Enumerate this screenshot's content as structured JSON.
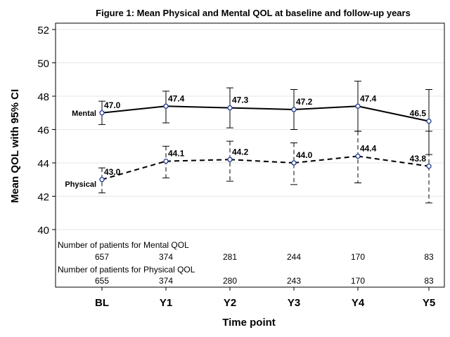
{
  "title": "Figure 1: Mean Physical and Mental QOL at baseline and follow-up years",
  "chart_data": {
    "type": "line",
    "title": "Figure 1: Mean Physical and Mental QOL at baseline and follow-up years",
    "xlabel": "Time point",
    "ylabel": "Mean QOL with 95% CI",
    "categories": [
      "BL",
      "Y1",
      "Y2",
      "Y3",
      "Y4",
      "Y5"
    ],
    "ylim": [
      40,
      52
    ],
    "yticks": [
      40,
      42,
      44,
      46,
      48,
      50,
      52
    ],
    "grid": true,
    "series": [
      {
        "name": "Mental",
        "values": [
          47.0,
          47.4,
          47.3,
          47.2,
          47.4,
          46.5
        ],
        "ci_lower": [
          46.3,
          46.4,
          46.1,
          46.0,
          45.9,
          44.5
        ],
        "ci_upper": [
          47.7,
          48.3,
          48.5,
          48.4,
          48.9,
          48.4
        ],
        "labels": [
          "47.0",
          "47.4",
          "47.3",
          "47.2",
          "47.4",
          "46.5"
        ],
        "line_style": "solid",
        "color": "#000000"
      },
      {
        "name": "Physical",
        "values": [
          43.0,
          44.1,
          44.2,
          44.0,
          44.4,
          43.8
        ],
        "ci_lower": [
          42.2,
          43.1,
          42.9,
          42.7,
          42.8,
          41.6
        ],
        "ci_upper": [
          43.7,
          45.0,
          45.3,
          45.2,
          45.9,
          45.9
        ],
        "labels": [
          "43.0",
          "44.1",
          "44.2",
          "44.0",
          "44.4",
          "43.8"
        ],
        "line_style": "dashed",
        "color": "#000000"
      }
    ],
    "marker_color": "#1f3a93",
    "patient_counts": [
      {
        "label": "Number of patients for Mental QOL",
        "values": [
          "657",
          "374",
          "281",
          "244",
          "170",
          "83"
        ]
      },
      {
        "label": "Number of patients for Physical QOL",
        "values": [
          "655",
          "374",
          "280",
          "243",
          "170",
          "83"
        ]
      }
    ]
  }
}
